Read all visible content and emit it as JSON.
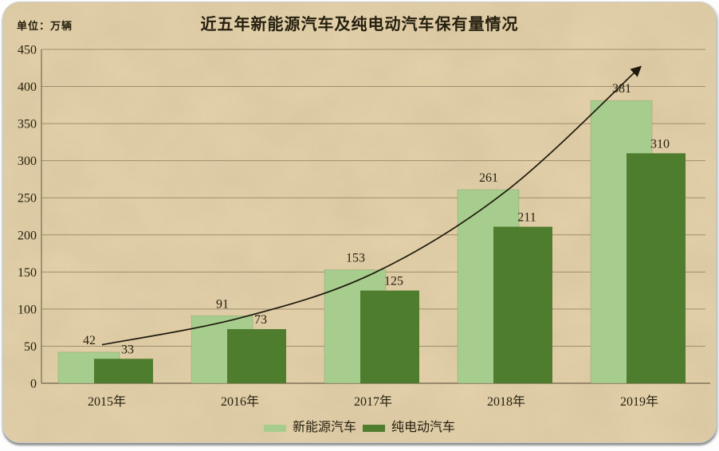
{
  "chart_data": {
    "type": "bar",
    "title": "近五年新能源汽车及纯电动汽车保有量情况",
    "unit_label": "单位：万辆",
    "categories": [
      "2015年",
      "2016年",
      "2017年",
      "2018年",
      "2019年"
    ],
    "series": [
      {
        "name": "新能源汽车",
        "color": "#a7cd8e",
        "values": [
          42,
          91,
          153,
          261,
          381
        ]
      },
      {
        "name": "纯电动汽车",
        "color": "#4e7d2e",
        "values": [
          33,
          73,
          125,
          211,
          310
        ]
      }
    ],
    "ylim": [
      0,
      450
    ],
    "yticks": [
      0,
      50,
      100,
      150,
      200,
      250,
      300,
      350,
      400,
      450
    ],
    "grid": true,
    "legend_position": "bottom",
    "value_labels": true,
    "trend_curve": {
      "style": "smooth-with-arrow",
      "color": "#1f1a0d",
      "points": [
        {
          "category_index": 0,
          "value": 53
        },
        {
          "category_index": 1,
          "value": 88
        },
        {
          "category_index": 2,
          "value": 148
        },
        {
          "category_index": 3,
          "value": 259
        },
        {
          "category_index": 4,
          "value": 425
        }
      ]
    }
  },
  "colors": {
    "paper": "#e8d5ae",
    "text": "#26200f",
    "grid": "#8f7f5f",
    "axis": "#6f6148"
  }
}
